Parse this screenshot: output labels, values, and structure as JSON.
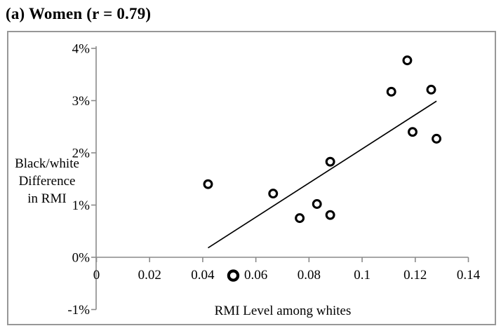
{
  "title": "(a) Women (r = 0.79)",
  "chart_data": {
    "type": "scatter",
    "title": "(a) Women (r = 0.79)",
    "correlation": "r = 0.79",
    "xlabel": "RMI Level among whites",
    "ylabel_lines": [
      "Black/white",
      "Difference",
      "in RMI"
    ],
    "xlim": [
      0,
      0.14
    ],
    "ylim": [
      -1,
      4
    ],
    "grid": false,
    "legend": "none",
    "x_ticks": [
      {
        "value": 0,
        "label": "0"
      },
      {
        "value": 0.02,
        "label": "0.02"
      },
      {
        "value": 0.04,
        "label": "0.04"
      },
      {
        "value": 0.06,
        "label": "0.06"
      },
      {
        "value": 0.08,
        "label": "0.08"
      },
      {
        "value": 0.1,
        "label": "0.1"
      },
      {
        "value": 0.12,
        "label": "0.12"
      },
      {
        "value": 0.14,
        "label": "0.14"
      }
    ],
    "y_ticks": [
      {
        "value": -1,
        "label": "-1%"
      },
      {
        "value": 0,
        "label": "0%"
      },
      {
        "value": 1,
        "label": "1%"
      },
      {
        "value": 2,
        "label": "2%"
      },
      {
        "value": 3,
        "label": "3%"
      },
      {
        "value": 4,
        "label": "4%"
      }
    ],
    "points": [
      {
        "x": 0.042,
        "y": 1.4,
        "bold": false
      },
      {
        "x": 0.0515,
        "y": -0.35,
        "bold": true
      },
      {
        "x": 0.0665,
        "y": 1.22,
        "bold": false
      },
      {
        "x": 0.0765,
        "y": 0.75,
        "bold": false
      },
      {
        "x": 0.083,
        "y": 1.02,
        "bold": false
      },
      {
        "x": 0.088,
        "y": 0.81,
        "bold": false
      },
      {
        "x": 0.088,
        "y": 1.83,
        "bold": false
      },
      {
        "x": 0.111,
        "y": 3.17,
        "bold": false
      },
      {
        "x": 0.117,
        "y": 3.77,
        "bold": false
      },
      {
        "x": 0.119,
        "y": 2.4,
        "bold": false
      },
      {
        "x": 0.126,
        "y": 3.21,
        "bold": false
      },
      {
        "x": 0.128,
        "y": 2.27,
        "bold": false
      }
    ],
    "trendline": {
      "x1": 0.042,
      "y1": 0.18,
      "x2": 0.128,
      "y2": 2.99
    },
    "colors": {
      "point_stroke": "#000000",
      "point_fill": "#ffffff",
      "trendline": "#000000",
      "axis": "#8a8a8a",
      "text": "#000000",
      "box_border": "#979797",
      "background": "#ffffff"
    }
  }
}
